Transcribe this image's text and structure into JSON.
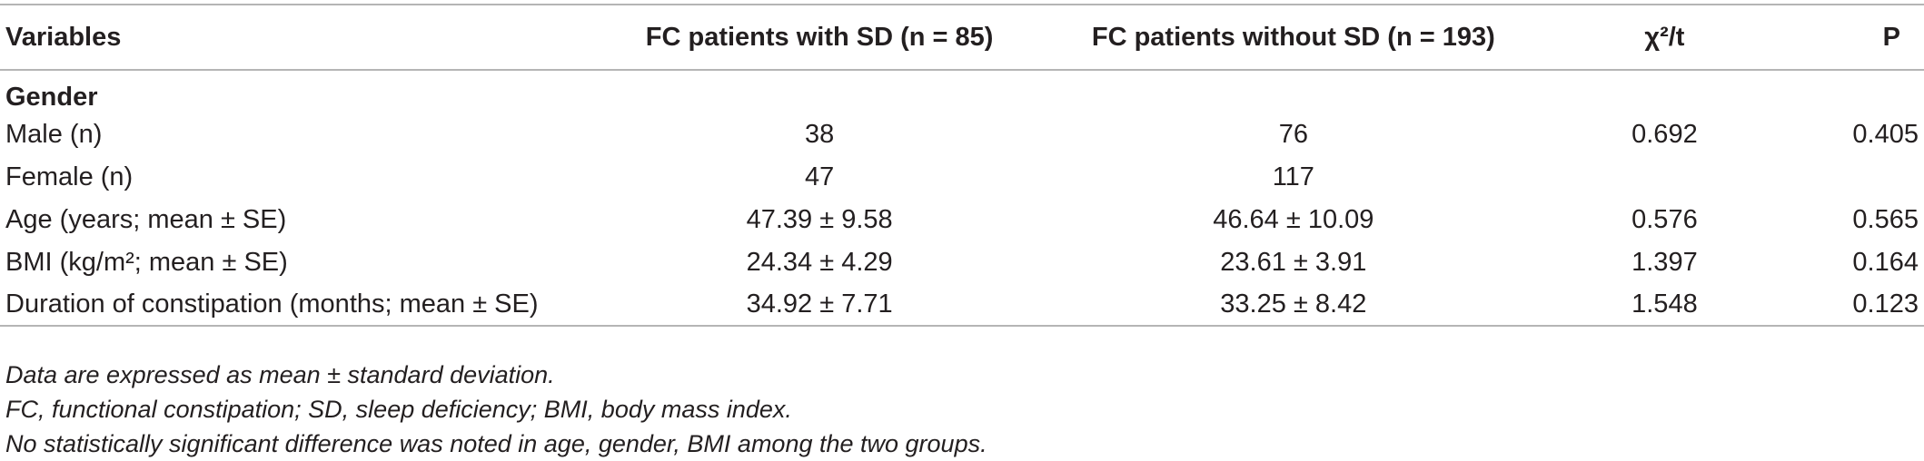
{
  "table": {
    "headers": {
      "variables": "Variables",
      "with_sd": "FC patients with SD (n = 85)",
      "without_sd": "FC patients without SD (n = 193)",
      "stat": "χ²/t",
      "p": "P"
    },
    "section_gender": "Gender",
    "rows": [
      {
        "label": "Male (n)",
        "with_sd": "38",
        "without_sd": "76",
        "stat": "0.692",
        "p": "0.405"
      },
      {
        "label": "Female (n)",
        "with_sd": "47",
        "without_sd": "117",
        "stat": "",
        "p": ""
      },
      {
        "label": "Age (years; mean ± SE)",
        "with_sd": "47.39 ± 9.58",
        "without_sd": "46.64 ± 10.09",
        "stat": "0.576",
        "p": "0.565"
      },
      {
        "label": "BMI (kg/m²; mean ± SE)",
        "with_sd": "24.34 ± 4.29",
        "without_sd": "23.61 ± 3.91",
        "stat": "1.397",
        "p": "0.164"
      },
      {
        "label": "Duration of constipation (months; mean ± SE)",
        "with_sd": "34.92 ± 7.71",
        "without_sd": "33.25 ± 8.42",
        "stat": "1.548",
        "p": "0.123"
      }
    ]
  },
  "footnotes": [
    "Data are expressed as mean ± standard deviation.",
    "FC, functional constipation; SD, sleep deficiency; BMI, body mass index.",
    "No statistically significant difference was noted in age, gender, BMI among the two groups."
  ]
}
